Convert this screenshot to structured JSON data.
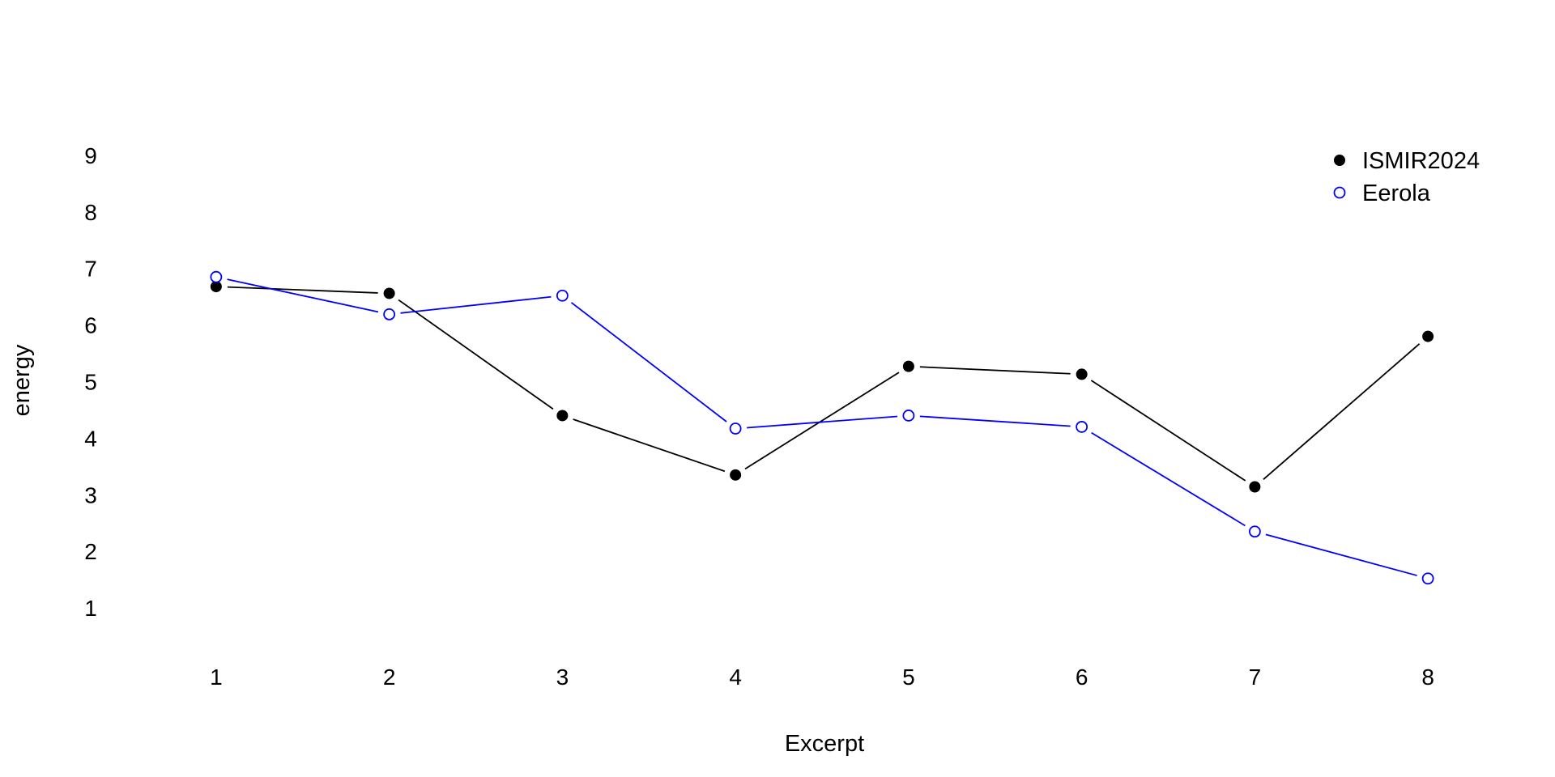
{
  "chart_data": {
    "type": "line",
    "title": "",
    "xlabel": "Excerpt",
    "ylabel": "energy",
    "x": [
      1,
      2,
      3,
      4,
      5,
      6,
      7,
      8
    ],
    "xlim": [
      0.5,
      8.5
    ],
    "ylim": [
      0.3,
      9.6
    ],
    "yticks": [
      1,
      2,
      3,
      4,
      5,
      6,
      7,
      8,
      9
    ],
    "grid": false,
    "legend_position": "top-right",
    "series": [
      {
        "name": "ISMIR2024",
        "color": "#000000",
        "marker": "filled-circle",
        "values": [
          6.68,
          6.56,
          4.4,
          3.35,
          5.27,
          5.13,
          3.14,
          5.8
        ]
      },
      {
        "name": "Eerola",
        "color": "#0000ff",
        "marker": "open-circle",
        "values": [
          6.85,
          6.19,
          6.52,
          4.17,
          4.4,
          4.2,
          2.35,
          1.52
        ]
      }
    ]
  }
}
